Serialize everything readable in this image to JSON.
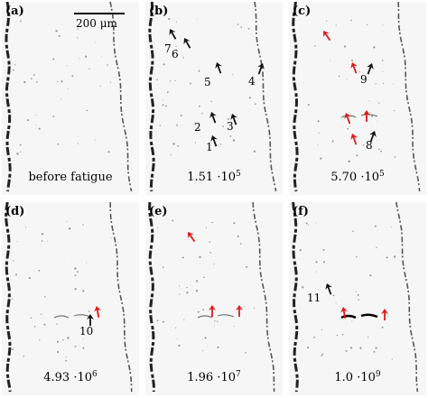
{
  "scale_bar": {
    "label": "200 μm"
  },
  "colors": {
    "arrow_black": "#111111",
    "arrow_red": "#e01818"
  },
  "panels": [
    {
      "label": "(a)",
      "cycles_mantissa": "before fatigue",
      "cycles_exp": "",
      "arrows": []
    },
    {
      "label": "(b)",
      "cycles_mantissa": "1.51 ·10",
      "cycles_exp": "5",
      "arrows": [
        {
          "color": "black",
          "number": "7"
        },
        {
          "color": "black",
          "number": "6"
        },
        {
          "color": "black",
          "number": "5"
        },
        {
          "color": "black",
          "number": "4"
        },
        {
          "color": "black",
          "number": "2"
        },
        {
          "color": "black",
          "number": "3"
        },
        {
          "color": "black",
          "number": "1"
        }
      ]
    },
    {
      "label": "(c)",
      "cycles_mantissa": "5.70 ·10",
      "cycles_exp": "5",
      "arrows": [
        {
          "color": "red",
          "number": ""
        },
        {
          "color": "red",
          "number": ""
        },
        {
          "color": "black",
          "number": "9"
        },
        {
          "color": "red",
          "number": ""
        },
        {
          "color": "red",
          "number": ""
        },
        {
          "color": "red",
          "number": ""
        },
        {
          "color": "black",
          "number": "8"
        }
      ]
    },
    {
      "label": "(d)",
      "cycles_mantissa": "4.93 ·10",
      "cycles_exp": "6",
      "arrows": [
        {
          "color": "red",
          "number": ""
        },
        {
          "color": "black",
          "number": "10"
        }
      ]
    },
    {
      "label": "(e)",
      "cycles_mantissa": "1.96 ·10",
      "cycles_exp": "7",
      "arrows": [
        {
          "color": "red",
          "number": ""
        },
        {
          "color": "red",
          "number": ""
        },
        {
          "color": "red",
          "number": ""
        }
      ]
    },
    {
      "label": "(f)",
      "cycles_mantissa": "1.0 ·10",
      "cycles_exp": "9",
      "arrows": [
        {
          "color": "black",
          "number": "11"
        },
        {
          "color": "red",
          "number": ""
        },
        {
          "color": "red",
          "number": ""
        }
      ]
    }
  ]
}
